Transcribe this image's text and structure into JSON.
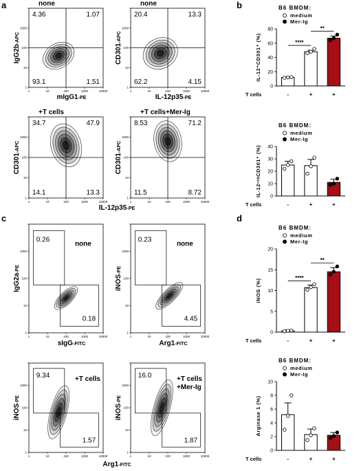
{
  "panels": {
    "a": {
      "letter": "a",
      "plots": [
        {
          "title": "none",
          "ylabel": {
            "marker": "IgG2b",
            "fluor": "-APC"
          },
          "xlabel": {
            "marker": "mIgG1",
            "fluor": "-PE"
          },
          "quadrants": [
            "4.36",
            "1.07",
            "93.1",
            "1.51"
          ]
        },
        {
          "title": "none",
          "ylabel": {
            "marker": "CD301",
            "fluor": "-APC"
          },
          "xlabel": {
            "marker": "IL-12p35",
            "fluor": "-PE"
          },
          "quadrants": [
            "20.4",
            "13.3",
            "62.2",
            "4.15"
          ]
        },
        {
          "title": "+T cells",
          "ylabel": {
            "marker": "CD301",
            "fluor": "-APC"
          },
          "quadrants": [
            "34.7",
            "47.9",
            "14.1",
            "13.3"
          ]
        },
        {
          "title": "+T cells+Mer-Ig",
          "ylabel": {
            "marker": "CD301",
            "fluor": "-APC"
          },
          "quadrants": [
            "8.53",
            "71.2",
            "11.5",
            "8.72"
          ]
        }
      ],
      "shared_xlabel": {
        "marker": "IL-12p35",
        "fluor": "-PE"
      }
    },
    "c": {
      "letter": "c",
      "plots": [
        {
          "condition": [
            "none"
          ],
          "ylabel": {
            "marker": "IgG2a",
            "fluor": "-PE"
          },
          "xlabel": {
            "marker": "sIgG",
            "fluor": "-FITC"
          },
          "gates": [
            "0.26",
            "0.18"
          ]
        },
        {
          "condition": [
            "none"
          ],
          "ylabel": {
            "marker": "iNOS",
            "fluor": "-PE"
          },
          "xlabel": {
            "marker": "Arg1",
            "fluor": "-FITC"
          },
          "gates": [
            "0.23",
            "4.45"
          ]
        },
        {
          "condition": [
            "+T cells"
          ],
          "ylabel": {
            "marker": "iNOS",
            "fluor": "-PE"
          },
          "gates": [
            "9.34",
            "1.57"
          ]
        },
        {
          "condition": [
            "+T cells",
            "+Mer-Ig"
          ],
          "ylabel": {
            "marker": "iNOS",
            "fluor": "-PE"
          },
          "gates": [
            "16.0",
            "1.87"
          ]
        }
      ],
      "shared_xlabel": {
        "marker": "Arg1",
        "fluor": "-FITC"
      }
    },
    "b": {
      "letter": "b",
      "charts": [
        {
          "title": "B6 BMDM:",
          "legend": [
            "medium",
            "Mer-Ig"
          ],
          "ylabel": "IL-12⁺CD301⁺ (%)",
          "row_label": "T cells",
          "categories": [
            "-",
            "+",
            "+"
          ],
          "values": [
            12,
            48,
            67
          ],
          "errors": [
            1,
            2,
            3
          ],
          "points": [
            [
              11.5,
              12,
              12.5
            ],
            [
              46,
              48,
              52
            ],
            [
              64,
              67,
              72
            ]
          ],
          "colors": [
            "#ffffff",
            "#ffffff",
            "#a50f15"
          ],
          "ylim": [
            0,
            80
          ],
          "yticks": [
            0,
            20,
            40,
            60,
            80
          ],
          "significance": [
            "****",
            "**"
          ]
        },
        {
          "title": "B6 BMDM:",
          "legend": [
            "medium",
            "Mer-Ig"
          ],
          "ylabel": "IL-12ⁿᵉᵍCD301⁺ (%)",
          "row_label": "T cells",
          "categories": [
            "-",
            "+",
            "+"
          ],
          "values": [
            25,
            24.5,
            11
          ],
          "errors": [
            3,
            5,
            2.5
          ],
          "points": [
            [
              22,
              25,
              28
            ],
            [
              18,
              24,
              31
            ],
            [
              9,
              10,
              14
            ]
          ],
          "colors": [
            "#ffffff",
            "#ffffff",
            "#a50f15"
          ],
          "ylim": [
            0,
            40
          ],
          "yticks": [
            0,
            10,
            20,
            30,
            40
          ],
          "significance": []
        }
      ]
    },
    "d": {
      "letter": "d",
      "charts": [
        {
          "title": "B6 BMDM:",
          "legend": [
            "medium",
            "Mer-Ig"
          ],
          "ylabel": "iNOS (%)",
          "row_label": "T cells",
          "categories": [
            "-",
            "+",
            "+"
          ],
          "values": [
            0.3,
            10.7,
            14.5
          ],
          "errors": [
            0.2,
            0.6,
            1
          ],
          "points": [
            [
              0.2,
              0.3,
              0.4
            ],
            [
              10.2,
              10.8,
              11.5
            ],
            [
              13.8,
              14.5,
              15.8
            ]
          ],
          "colors": [
            "#ffffff",
            "#ffffff",
            "#a50f15"
          ],
          "ylim": [
            0,
            20
          ],
          "yticks": [
            0,
            5,
            10,
            15,
            20
          ],
          "significance": [
            "****",
            "**"
          ]
        },
        {
          "title": "B6 BMDM:",
          "legend": [
            "medium",
            "Mer-Ig"
          ],
          "ylabel": "Arginase 1 (%)",
          "row_label": "T cells",
          "categories": [
            "-",
            "+",
            "+"
          ],
          "values": [
            5.2,
            2.3,
            2.2
          ],
          "errors": [
            1.7,
            0.8,
            0.4
          ],
          "points": [
            [
              3,
              5,
              8
            ],
            [
              1.5,
              2.2,
              3.2
            ],
            [
              1.8,
              2.1,
              2.6
            ]
          ],
          "colors": [
            "#ffffff",
            "#ffffff",
            "#a50f15"
          ],
          "ylim": [
            0,
            10
          ],
          "yticks": [
            0,
            2,
            4,
            6,
            8,
            10
          ],
          "significance": []
        }
      ]
    }
  },
  "flow_ticks": [
    1,
    10,
    100,
    1000,
    10000
  ]
}
